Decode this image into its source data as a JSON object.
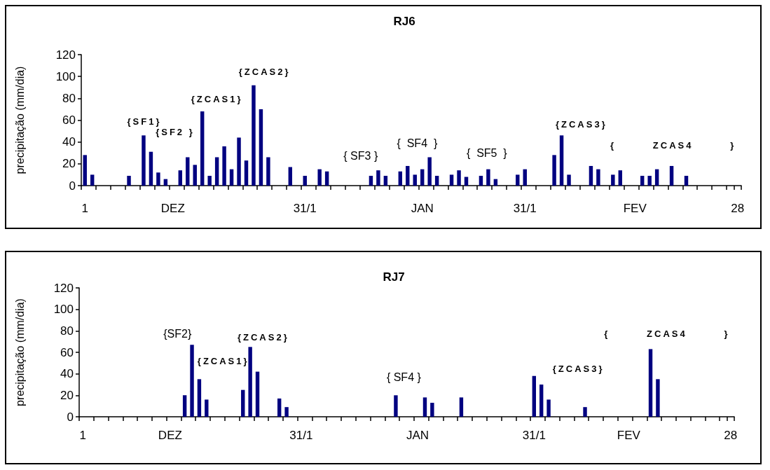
{
  "chart_data": [
    {
      "type": "bar",
      "title": "RJ6",
      "ylabel": "precipitação (mm/dia)",
      "categories": [
        "1",
        null,
        null,
        null,
        null,
        null,
        null,
        null,
        null,
        null,
        null,
        null,
        "DEZ",
        null,
        null,
        null,
        null,
        null,
        null,
        null,
        null,
        null,
        null,
        null,
        null,
        null,
        null,
        null,
        null,
        null,
        "31/1",
        null,
        null,
        null,
        null,
        null,
        null,
        null,
        null,
        null,
        null,
        null,
        null,
        null,
        null,
        null,
        "JAN",
        null,
        null,
        null,
        null,
        null,
        null,
        null,
        null,
        null,
        null,
        null,
        null,
        null,
        "31/1",
        null,
        null,
        null,
        null,
        null,
        null,
        null,
        null,
        null,
        null,
        null,
        null,
        null,
        null,
        "FEV",
        null,
        null,
        null,
        null,
        null,
        null,
        null,
        null,
        null,
        null,
        null,
        null,
        null,
        "28"
      ],
      "values": [
        28,
        10,
        null,
        null,
        null,
        null,
        9,
        null,
        46,
        31,
        12,
        6,
        null,
        14,
        26,
        19,
        68,
        9,
        26,
        36,
        15,
        44,
        23,
        92,
        70,
        26,
        null,
        null,
        17,
        null,
        9,
        null,
        15,
        13,
        null,
        null,
        null,
        null,
        null,
        9,
        14,
        9,
        null,
        13,
        18,
        10,
        15,
        26,
        9,
        null,
        10,
        14,
        8,
        null,
        9,
        15,
        6,
        null,
        null,
        10,
        15,
        null,
        null,
        null,
        28,
        46,
        10,
        null,
        null,
        18,
        15,
        null,
        10,
        14,
        null,
        null,
        9,
        9,
        15,
        null,
        18,
        null,
        9,
        null,
        null,
        null,
        null,
        null,
        null,
        null
      ],
      "color": "#000080",
      "ylim": [
        0,
        120
      ],
      "yticks": [
        0,
        20,
        40,
        60,
        80,
        100,
        120
      ],
      "annotations": [
        "{SF1}",
        "{SF2 }",
        "{ZCAS1}",
        "{ZCAS2}",
        "{ SF3 }",
        "{  SF4  }",
        "{  SF5  }",
        "{ZCAS3}",
        "{        ZCAS4        }"
      ]
    },
    {
      "type": "bar",
      "title": "RJ7",
      "ylabel": "precipitação (mm/dia)",
      "categories": [
        "1",
        null,
        null,
        null,
        null,
        null,
        null,
        null,
        null,
        null,
        null,
        null,
        "DEZ",
        null,
        null,
        null,
        null,
        null,
        null,
        null,
        null,
        null,
        null,
        null,
        null,
        null,
        null,
        null,
        null,
        null,
        "31/1",
        null,
        null,
        null,
        null,
        null,
        null,
        null,
        null,
        null,
        null,
        null,
        null,
        null,
        null,
        null,
        "JAN",
        null,
        null,
        null,
        null,
        null,
        null,
        null,
        null,
        null,
        null,
        null,
        null,
        null,
        null,
        null,
        "31/1",
        null,
        null,
        null,
        null,
        null,
        null,
        null,
        null,
        null,
        null,
        null,
        null,
        "FEV",
        null,
        null,
        null,
        null,
        null,
        null,
        null,
        null,
        null,
        null,
        null,
        null,
        null,
        "28"
      ],
      "values": [
        null,
        null,
        null,
        null,
        null,
        null,
        null,
        null,
        null,
        null,
        null,
        null,
        null,
        null,
        20,
        67,
        35,
        16,
        null,
        null,
        null,
        null,
        25,
        65,
        42,
        null,
        null,
        17,
        9,
        null,
        null,
        null,
        null,
        null,
        null,
        null,
        null,
        null,
        null,
        null,
        null,
        null,
        null,
        20,
        null,
        null,
        null,
        18,
        13,
        null,
        null,
        null,
        18,
        null,
        null,
        null,
        null,
        null,
        null,
        null,
        null,
        null,
        38,
        30,
        16,
        null,
        null,
        null,
        null,
        9,
        null,
        null,
        null,
        null,
        null,
        null,
        null,
        null,
        63,
        35,
        null,
        null,
        null,
        null,
        null,
        null,
        null,
        null,
        null,
        null
      ],
      "color": "#000080",
      "ylim": [
        0,
        120
      ],
      "yticks": [
        0,
        20,
        40,
        60,
        80,
        100,
        120
      ],
      "annotations": [
        "{SF2}",
        "{ZCAS1}",
        "{ZCAS2}",
        "{ SF4 }",
        "{ZCAS3}",
        "{        ZCAS4        }"
      ]
    }
  ]
}
